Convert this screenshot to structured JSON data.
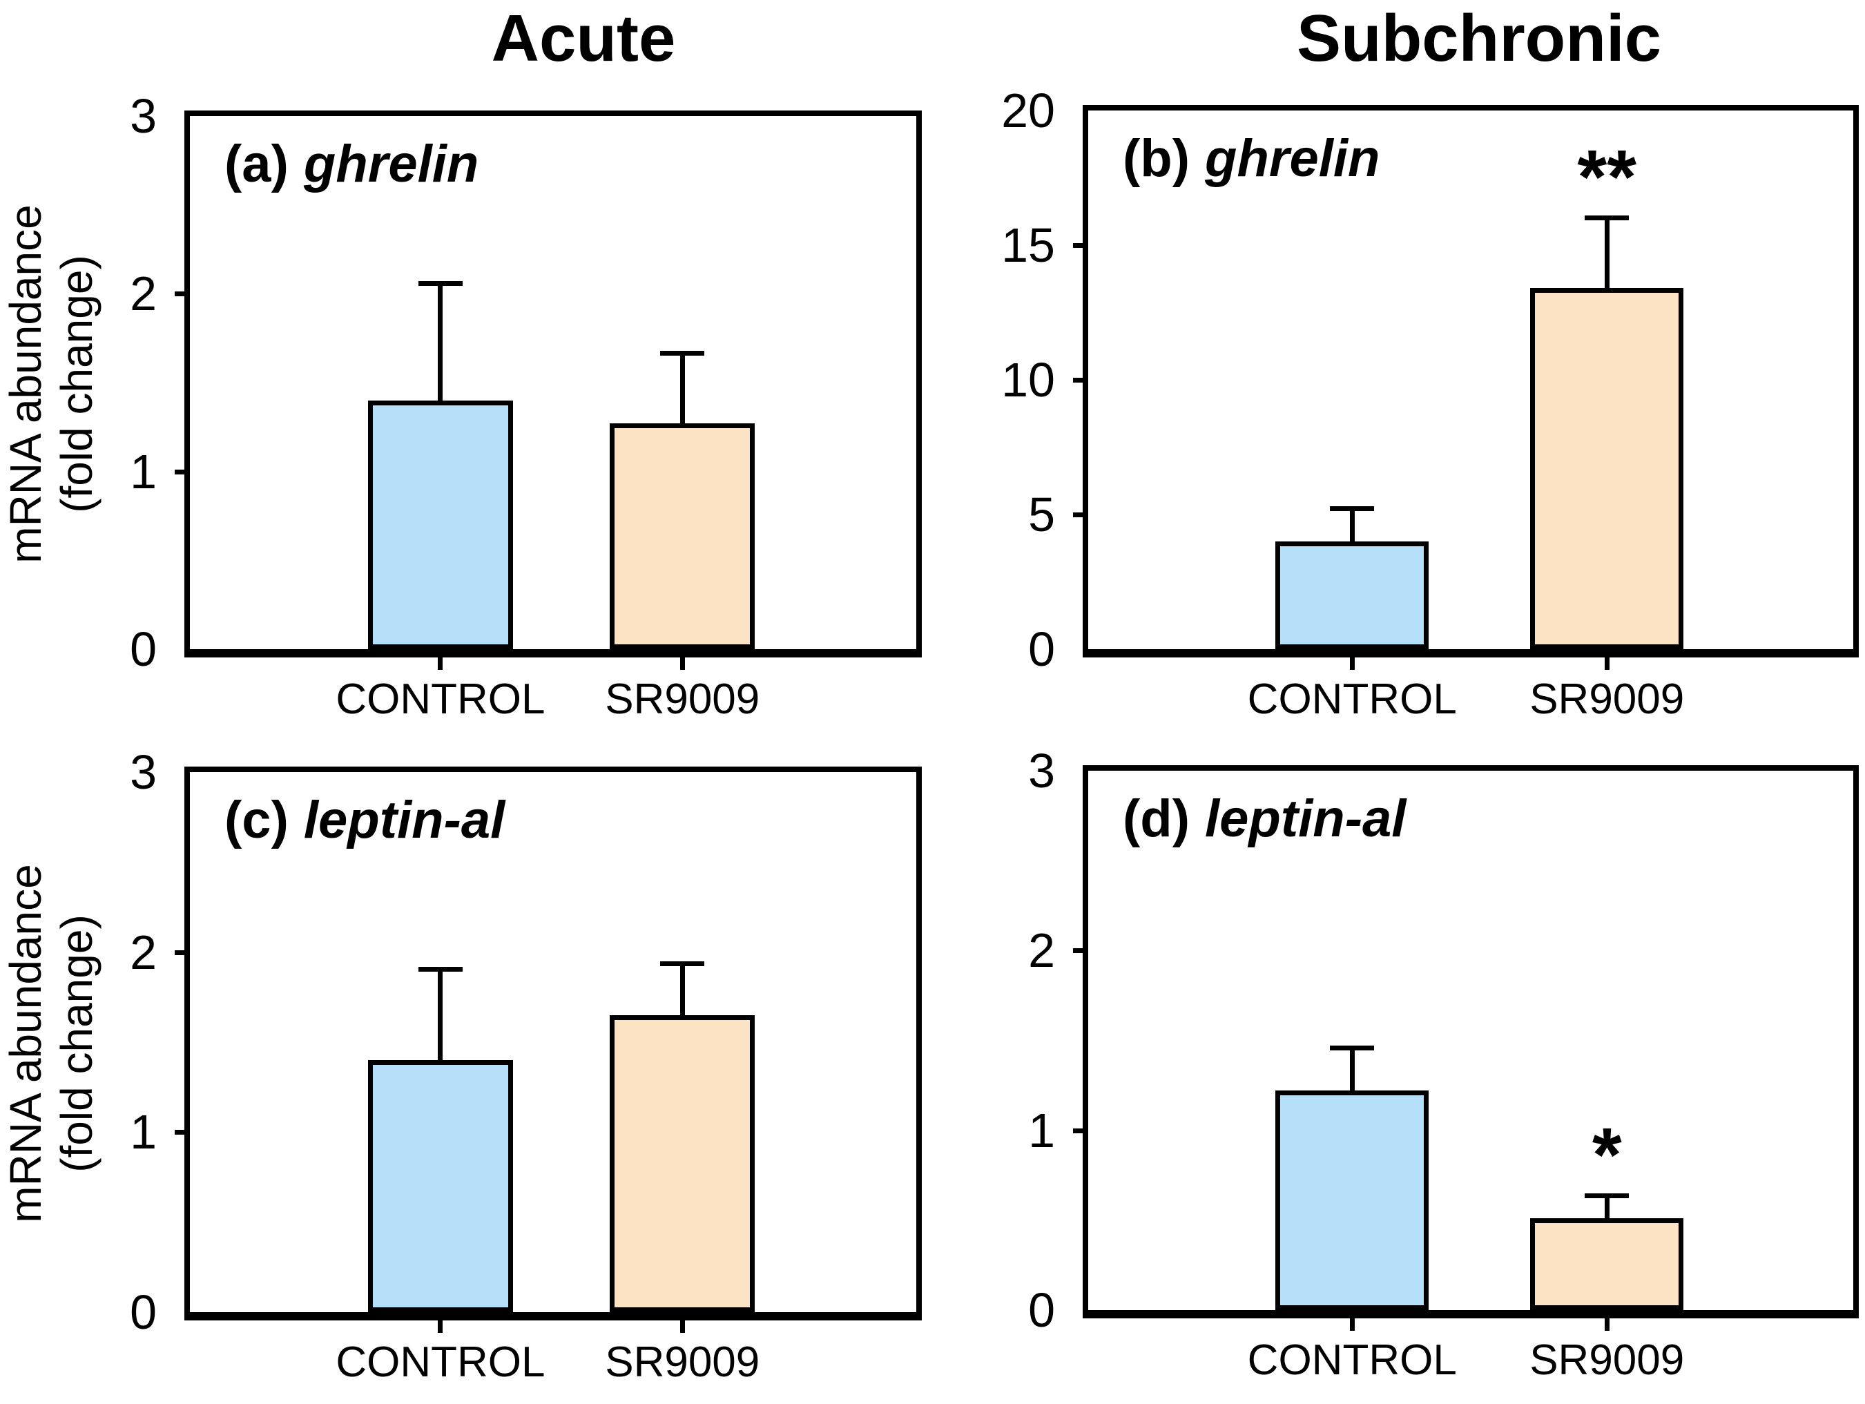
{
  "figure": {
    "background_color": "#ffffff",
    "column_titles": [
      "Acute",
      "Subchronic"
    ],
    "y_axis_label": {
      "line1": "mRNA abundance",
      "line2": "(fold change)"
    },
    "category_colors": {
      "CONTROL": "#b6dffa",
      "SR9009": "#fce3c4"
    },
    "outline_color": "#000000"
  },
  "chart_data": [
    {
      "type": "bar",
      "panel": "a",
      "panel_label": "(a)",
      "gene": "ghrelin",
      "column": "Acute",
      "categories": [
        "CONTROL",
        "SR9009"
      ],
      "values": [
        1.4,
        1.27
      ],
      "error_tops": [
        2.07,
        1.68
      ],
      "annotations": [
        "",
        ""
      ],
      "ylim": [
        0,
        3
      ],
      "yticks": [
        "0",
        "1",
        "2",
        "3"
      ],
      "ylabel": "mRNA abundance (fold change)",
      "grid": false,
      "legend": "none",
      "bar_colors": [
        "#b6dffa",
        "#fce3c4"
      ]
    },
    {
      "type": "bar",
      "panel": "b",
      "panel_label": "(b)",
      "gene": "ghrelin",
      "column": "Subchronic",
      "categories": [
        "CONTROL",
        "SR9009"
      ],
      "values": [
        4.0,
        13.4
      ],
      "error_tops": [
        5.3,
        16.1
      ],
      "annotations": [
        "",
        "**"
      ],
      "ylim": [
        0,
        20
      ],
      "yticks": [
        "0",
        "5",
        "10",
        "15",
        "20"
      ],
      "ylabel": "",
      "grid": false,
      "legend": "none",
      "bar_colors": [
        "#b6dffa",
        "#fce3c4"
      ]
    },
    {
      "type": "bar",
      "panel": "c",
      "panel_label": "(c)",
      "gene": "leptin-al",
      "column": "Acute",
      "categories": [
        "CONTROL",
        "SR9009"
      ],
      "values": [
        1.4,
        1.65
      ],
      "error_tops": [
        1.92,
        1.95
      ],
      "annotations": [
        "",
        ""
      ],
      "ylim": [
        0,
        3
      ],
      "yticks": [
        "0",
        "1",
        "2",
        "3"
      ],
      "ylabel": "mRNA abundance (fold change)",
      "grid": false,
      "legend": "none",
      "bar_colors": [
        "#b6dffa",
        "#fce3c4"
      ]
    },
    {
      "type": "bar",
      "panel": "d",
      "panel_label": "(d)",
      "gene": "leptin-al",
      "column": "Subchronic",
      "categories": [
        "CONTROL",
        "SR9009"
      ],
      "values": [
        1.22,
        0.51
      ],
      "error_tops": [
        1.47,
        0.65
      ],
      "annotations": [
        "",
        "*"
      ],
      "ylim": [
        0,
        3
      ],
      "yticks": [
        "0",
        "1",
        "2",
        "3"
      ],
      "ylabel": "",
      "grid": false,
      "legend": "none",
      "bar_colors": [
        "#b6dffa",
        "#fce3c4"
      ]
    }
  ]
}
